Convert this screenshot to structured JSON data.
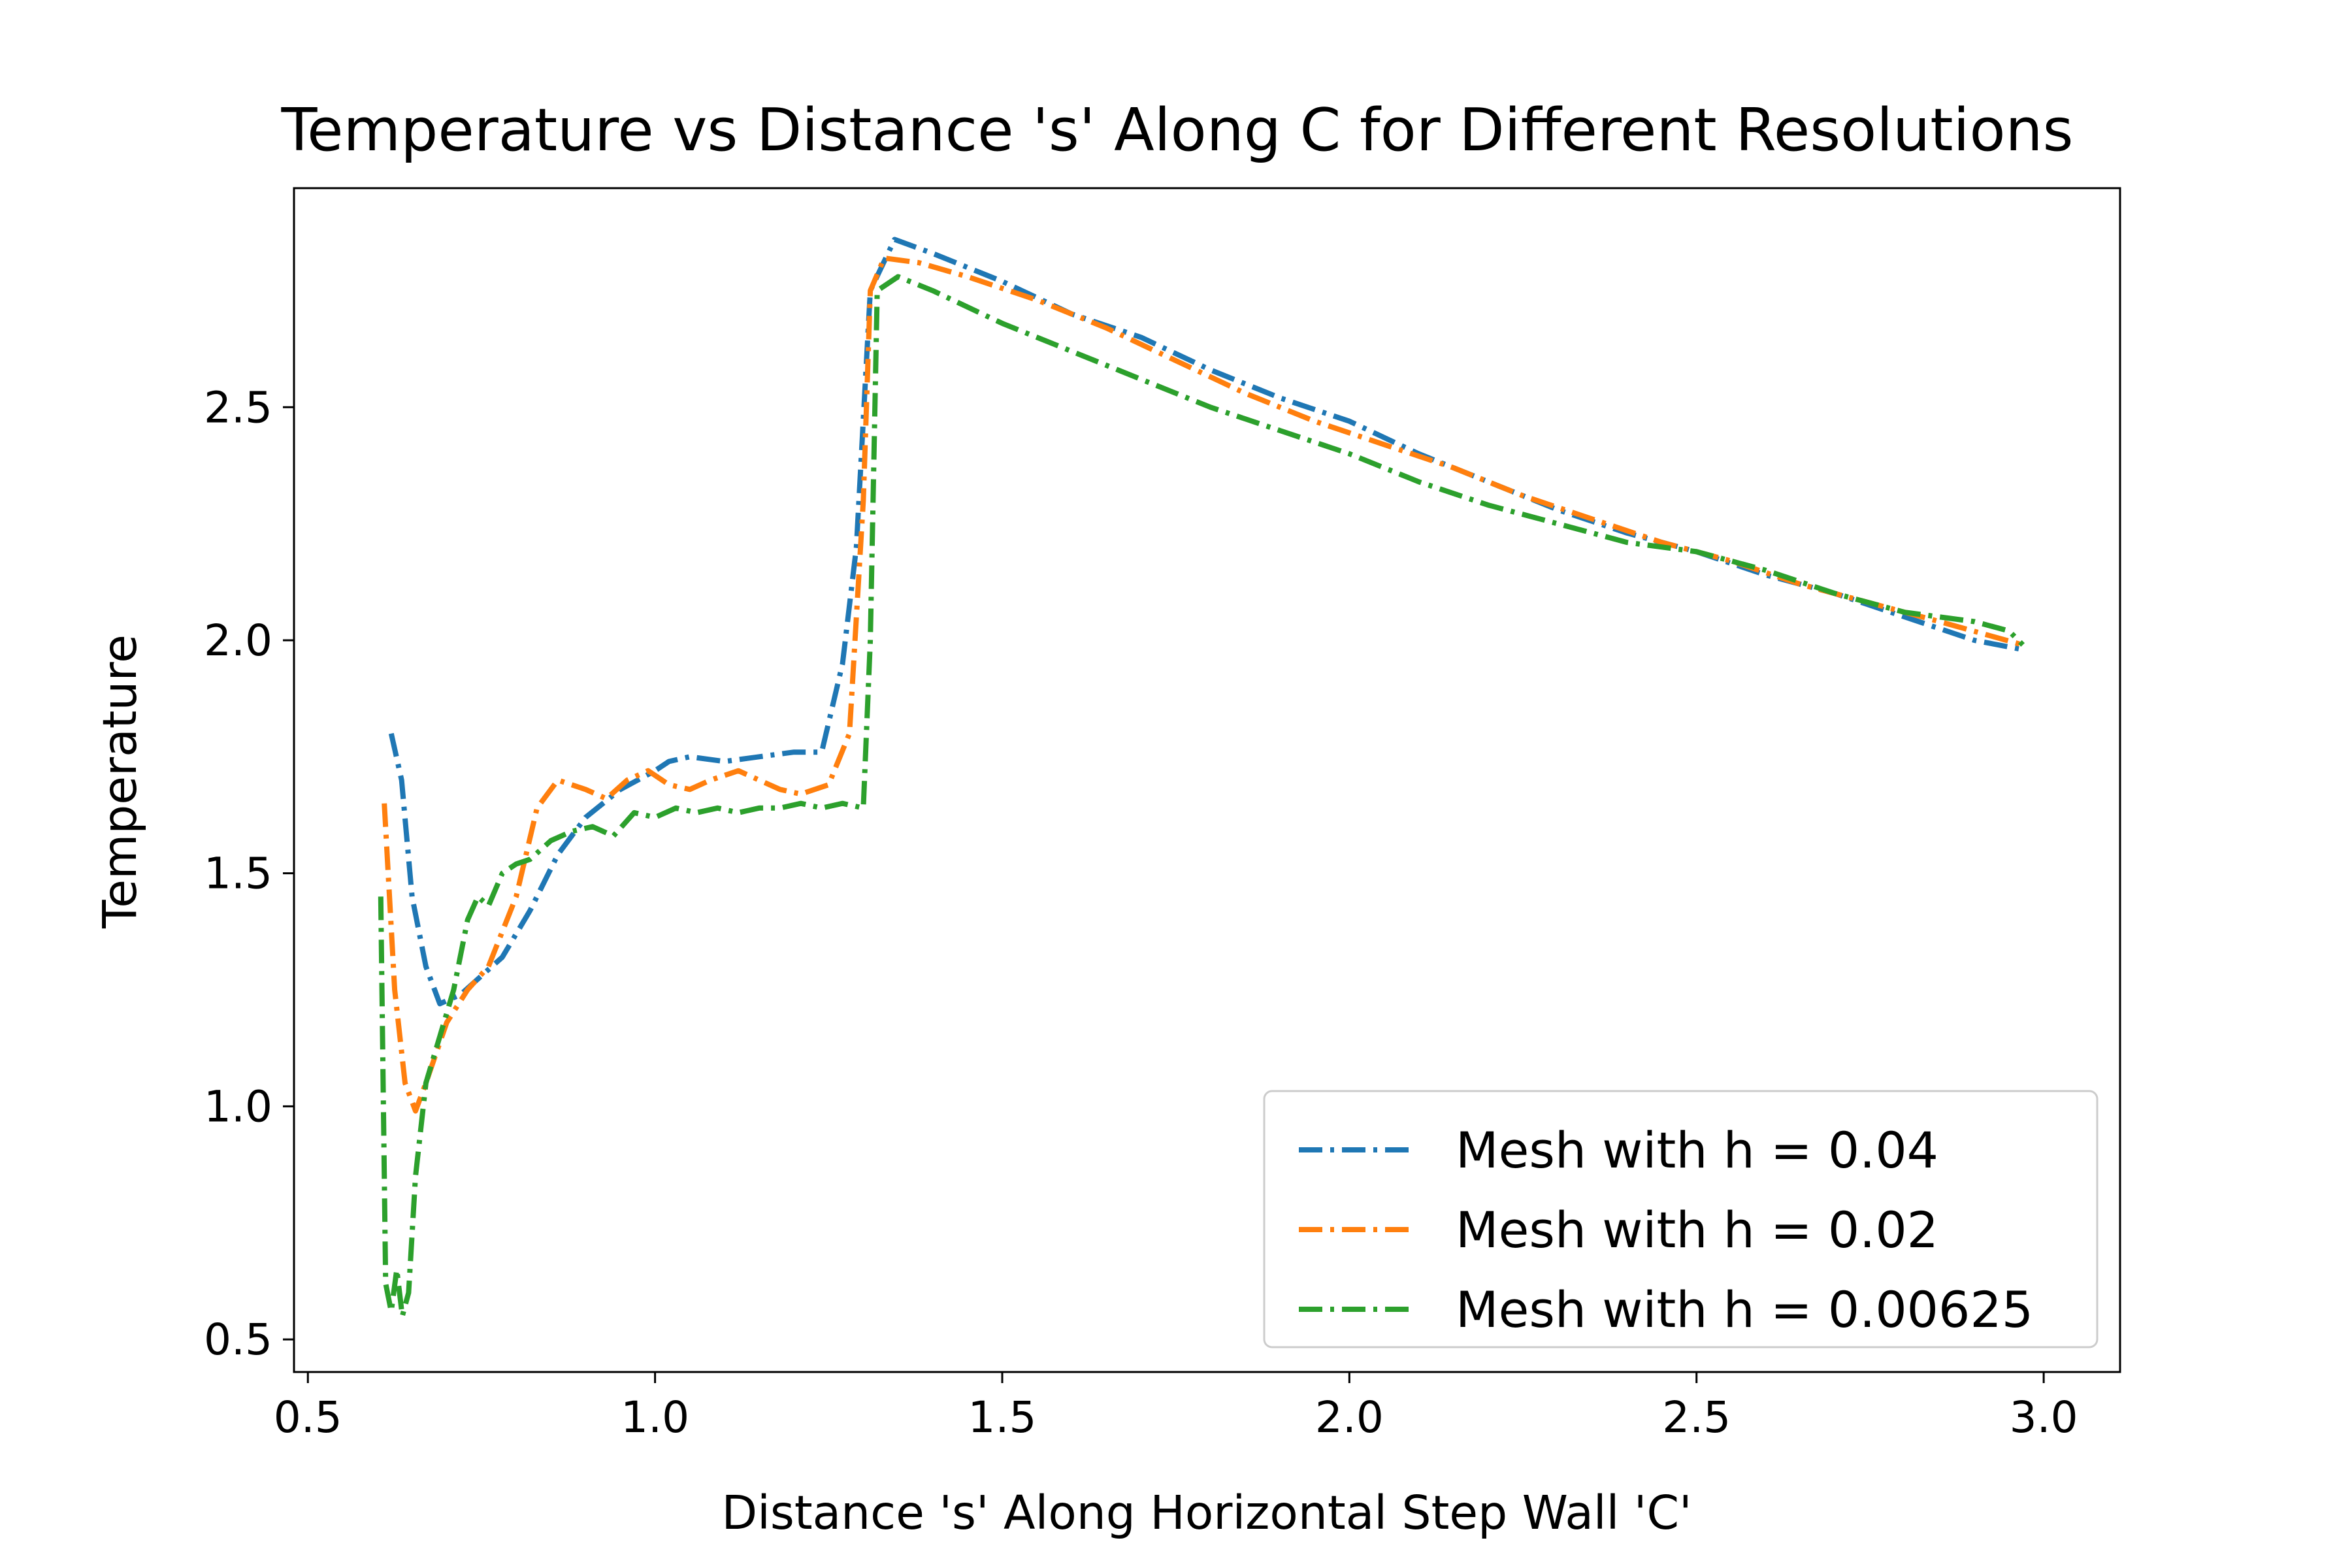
{
  "chart_data": {
    "type": "line",
    "title": "Temperature vs Distance 's' Along C for Different Resolutions",
    "xlabel": "Distance 's' Along Horizontal Step Wall 'C'",
    "ylabel": "Temperature",
    "xlim": [
      0.48,
      3.11
    ],
    "ylim": [
      0.43,
      2.97
    ],
    "xticks": [
      0.5,
      1.0,
      1.5,
      2.0,
      2.5,
      3.0
    ],
    "xtick_labels": [
      "0.5",
      "1.0",
      "1.5",
      "2.0",
      "2.5",
      "3.0"
    ],
    "yticks": [
      0.5,
      1.0,
      1.5,
      2.0,
      2.5
    ],
    "ytick_labels": [
      "0.5",
      "1.0",
      "1.5",
      "2.0",
      "2.5"
    ],
    "grid": false,
    "legend_position": "lower-right",
    "series": [
      {
        "name": "Mesh with h = 0.04",
        "color": "#1f77b4",
        "linestyle": "dashdot",
        "x": [
          0.62,
          0.635,
          0.65,
          0.67,
          0.69,
          0.72,
          0.75,
          0.78,
          0.82,
          0.86,
          0.9,
          0.95,
          1.0,
          1.02,
          1.05,
          1.1,
          1.15,
          1.2,
          1.24,
          1.27,
          1.29,
          1.31,
          1.345,
          1.4,
          1.5,
          1.6,
          1.7,
          1.8,
          1.9,
          2.0,
          2.1,
          2.2,
          2.3,
          2.4,
          2.5,
          2.6,
          2.7,
          2.8,
          2.9,
          2.97
        ],
        "y": [
          1.8,
          1.7,
          1.45,
          1.3,
          1.22,
          1.24,
          1.28,
          1.32,
          1.42,
          1.54,
          1.62,
          1.68,
          1.72,
          1.74,
          1.75,
          1.74,
          1.75,
          1.76,
          1.76,
          1.95,
          2.2,
          2.75,
          2.86,
          2.83,
          2.77,
          2.7,
          2.65,
          2.58,
          2.52,
          2.47,
          2.4,
          2.34,
          2.28,
          2.23,
          2.19,
          2.14,
          2.1,
          2.05,
          2.0,
          1.98
        ]
      },
      {
        "name": "Mesh with h = 0.02",
        "color": "#ff7f0e",
        "linestyle": "dashdot",
        "x": [
          0.61,
          0.625,
          0.64,
          0.655,
          0.67,
          0.7,
          0.73,
          0.76,
          0.8,
          0.83,
          0.86,
          0.9,
          0.93,
          0.96,
          0.99,
          1.02,
          1.05,
          1.08,
          1.12,
          1.15,
          1.18,
          1.21,
          1.25,
          1.28,
          1.3,
          1.31,
          1.33,
          1.38,
          1.45,
          1.55,
          1.65,
          1.75,
          1.85,
          1.95,
          2.05,
          2.15,
          2.25,
          2.35,
          2.45,
          2.55,
          2.65,
          2.75,
          2.85,
          2.97
        ],
        "y": [
          1.65,
          1.25,
          1.05,
          0.99,
          1.05,
          1.18,
          1.25,
          1.3,
          1.45,
          1.64,
          1.7,
          1.68,
          1.66,
          1.7,
          1.72,
          1.69,
          1.68,
          1.7,
          1.72,
          1.7,
          1.68,
          1.67,
          1.69,
          1.8,
          2.3,
          2.75,
          2.82,
          2.81,
          2.78,
          2.73,
          2.67,
          2.6,
          2.53,
          2.47,
          2.42,
          2.37,
          2.31,
          2.26,
          2.21,
          2.17,
          2.12,
          2.08,
          2.04,
          1.99
        ]
      },
      {
        "name": "Mesh with h = 0.00625",
        "color": "#2ca02c",
        "linestyle": "dashdot",
        "x": [
          0.605,
          0.612,
          0.62,
          0.628,
          0.636,
          0.645,
          0.655,
          0.67,
          0.69,
          0.71,
          0.73,
          0.745,
          0.76,
          0.78,
          0.8,
          0.82,
          0.85,
          0.88,
          0.91,
          0.94,
          0.97,
          1.0,
          1.03,
          1.06,
          1.09,
          1.12,
          1.15,
          1.18,
          1.21,
          1.24,
          1.27,
          1.3,
          1.31,
          1.32,
          1.35,
          1.4,
          1.5,
          1.6,
          1.7,
          1.8,
          1.9,
          2.0,
          2.1,
          2.2,
          2.3,
          2.4,
          2.5,
          2.6,
          2.7,
          2.8,
          2.9,
          2.95,
          2.97
        ],
        "y": [
          1.45,
          0.62,
          0.56,
          0.65,
          0.55,
          0.6,
          0.85,
          1.05,
          1.15,
          1.25,
          1.4,
          1.45,
          1.43,
          1.5,
          1.52,
          1.53,
          1.57,
          1.59,
          1.6,
          1.58,
          1.63,
          1.62,
          1.64,
          1.63,
          1.64,
          1.63,
          1.64,
          1.64,
          1.65,
          1.64,
          1.65,
          1.64,
          2.0,
          2.75,
          2.78,
          2.75,
          2.68,
          2.62,
          2.56,
          2.5,
          2.45,
          2.4,
          2.34,
          2.29,
          2.25,
          2.21,
          2.19,
          2.15,
          2.1,
          2.06,
          2.04,
          2.02,
          1.99
        ]
      }
    ]
  }
}
